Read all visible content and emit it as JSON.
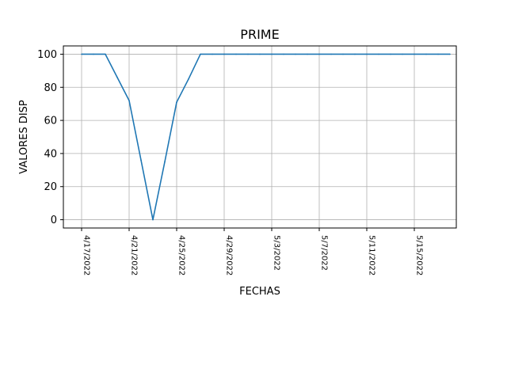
{
  "chart_data": {
    "type": "line",
    "title": "PRIME",
    "xlabel": "FECHAS",
    "ylabel": "VALORES DISP",
    "x": [
      "4/17/2022",
      "4/18/2022",
      "4/19/2022",
      "4/20/2022",
      "4/21/2022",
      "4/22/2022",
      "4/23/2022",
      "4/24/2022",
      "4/25/2022",
      "4/26/2022",
      "4/27/2022",
      "4/28/2022",
      "4/29/2022",
      "4/30/2022",
      "5/1/2022",
      "5/2/2022",
      "5/3/2022",
      "5/4/2022",
      "5/5/2022",
      "5/6/2022",
      "5/7/2022",
      "5/8/2022",
      "5/9/2022",
      "5/10/2022",
      "5/11/2022",
      "5/12/2022",
      "5/13/2022",
      "5/14/2022",
      "5/15/2022",
      "5/16/2022",
      "5/17/2022",
      "5/18/2022"
    ],
    "series": [
      {
        "color": "#1f77b4",
        "values": [
          100,
          100,
          100,
          86,
          72,
          36,
          0,
          35,
          71,
          85,
          100,
          100,
          100,
          100,
          100,
          100,
          100,
          100,
          100,
          100,
          100,
          100,
          100,
          100,
          100,
          100,
          100,
          100,
          100,
          100,
          100,
          100
        ]
      }
    ],
    "x_ticks": [
      "4/17/2022",
      "4/21/2022",
      "4/25/2022",
      "4/29/2022",
      "5/3/2022",
      "5/7/2022",
      "5/11/2022",
      "5/15/2022"
    ],
    "y_ticks": [
      0,
      20,
      40,
      60,
      80,
      100
    ],
    "ylim": [
      -5,
      105
    ],
    "grid": true,
    "legend": "none"
  }
}
